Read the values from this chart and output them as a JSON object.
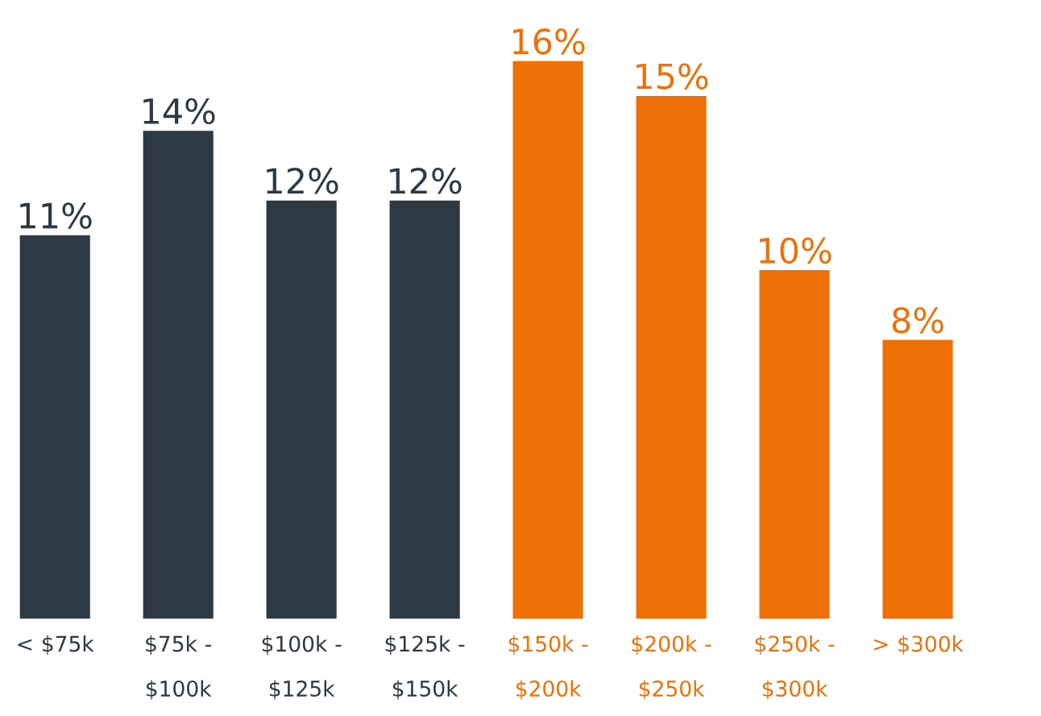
{
  "chart_data": {
    "type": "bar",
    "categories": [
      "< $75k",
      "$75k - $100k",
      "$100k - $125k",
      "$125k - $150k",
      "$150k - $200k",
      "$200k - $250k",
      "$250k - $300k",
      "> $300k"
    ],
    "values": [
      11,
      14,
      12,
      12,
      16,
      15,
      10,
      8
    ],
    "colors": [
      "#2d3a44",
      "#2d3a44",
      "#2d3a44",
      "#2d3a44",
      "#f07008",
      "#f07008",
      "#f07008",
      "#f07008"
    ],
    "value_labels": [
      "11%",
      "14%",
      "12%",
      "12%",
      "16%",
      "15%",
      "10%",
      "8%"
    ]
  }
}
